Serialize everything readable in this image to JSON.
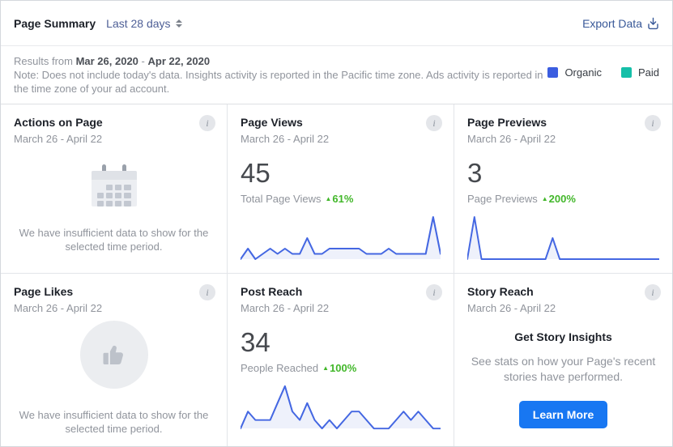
{
  "header": {
    "title": "Page Summary",
    "range_selector_label": "Last 28 days",
    "export_label": "Export Data"
  },
  "note": {
    "results_prefix": "Results from ",
    "date_start": "Mar 26, 2020",
    "date_separator": " - ",
    "date_end": "Apr 22, 2020",
    "body": "Note: Does not include today's data. Insights activity is reported in the Pacific time zone. Ads activity is reported in the time zone of your ad account.",
    "legend": [
      {
        "label": "Organic",
        "color": "#3b5de0"
      },
      {
        "label": "Paid",
        "color": "#15bfa8"
      }
    ]
  },
  "glyphs": {
    "info": "i",
    "up_arrow": "▲"
  },
  "colors": {
    "link_blue": "#385898",
    "button_blue": "#1877f2",
    "positive_green": "#42b72a",
    "sparkline_stroke": "#4467e2",
    "sparkline_fill": "#eef1fb"
  },
  "cards": [
    {
      "title": "Actions on Page",
      "date_range": "March 26 - April 22",
      "empty_message": "We have insufficient data to show for the selected time period."
    },
    {
      "title": "Page Views",
      "date_range": "March 26 - April 22",
      "value": "45",
      "metric_label": "Total Page Views",
      "delta": "61%"
    },
    {
      "title": "Page Previews",
      "date_range": "March 26 - April 22",
      "value": "3",
      "metric_label": "Page Previews",
      "delta": "200%"
    },
    {
      "title": "Page Likes",
      "date_range": "March 26 - April 22",
      "empty_message": "We have insufficient data to show for the selected time period."
    },
    {
      "title": "Post Reach",
      "date_range": "March 26 - April 22",
      "value": "34",
      "metric_label": "People Reached",
      "delta": "100%"
    },
    {
      "title": "Story Reach",
      "date_range": "March 26 - April 22",
      "cta_title": "Get Story Insights",
      "cta_text": "See stats on how your Page's recent stories have performed.",
      "button_label": "Learn More"
    }
  ],
  "chart_data": [
    {
      "type": "line",
      "title": "Page Views daily sparkline",
      "x_start": "Mar 26",
      "x_end": "Apr 22",
      "total": 45,
      "change": "+61%",
      "values": [
        0,
        2,
        0,
        1,
        2,
        1,
        2,
        1,
        1,
        4,
        1,
        1,
        2,
        2,
        2,
        2,
        2,
        1,
        1,
        1,
        2,
        1,
        1,
        1,
        1,
        1,
        8,
        1
      ]
    },
    {
      "type": "line",
      "title": "Page Previews daily sparkline",
      "x_start": "Mar 26",
      "x_end": "Apr 22",
      "total": 3,
      "change": "+200%",
      "values": [
        0,
        2,
        0,
        0,
        0,
        0,
        0,
        0,
        0,
        0,
        0,
        0,
        1,
        0,
        0,
        0,
        0,
        0,
        0,
        0,
        0,
        0,
        0,
        0,
        0,
        0,
        0,
        0
      ]
    },
    {
      "type": "line",
      "title": "Post Reach daily sparkline",
      "x_start": "Mar 26",
      "x_end": "Apr 22",
      "total": 34,
      "change": "+100%",
      "values": [
        0,
        2,
        1,
        1,
        1,
        3,
        5,
        2,
        1,
        3,
        1,
        0,
        1,
        0,
        1,
        2,
        2,
        1,
        0,
        0,
        0,
        1,
        2,
        1,
        2,
        1,
        0,
        0
      ]
    }
  ]
}
